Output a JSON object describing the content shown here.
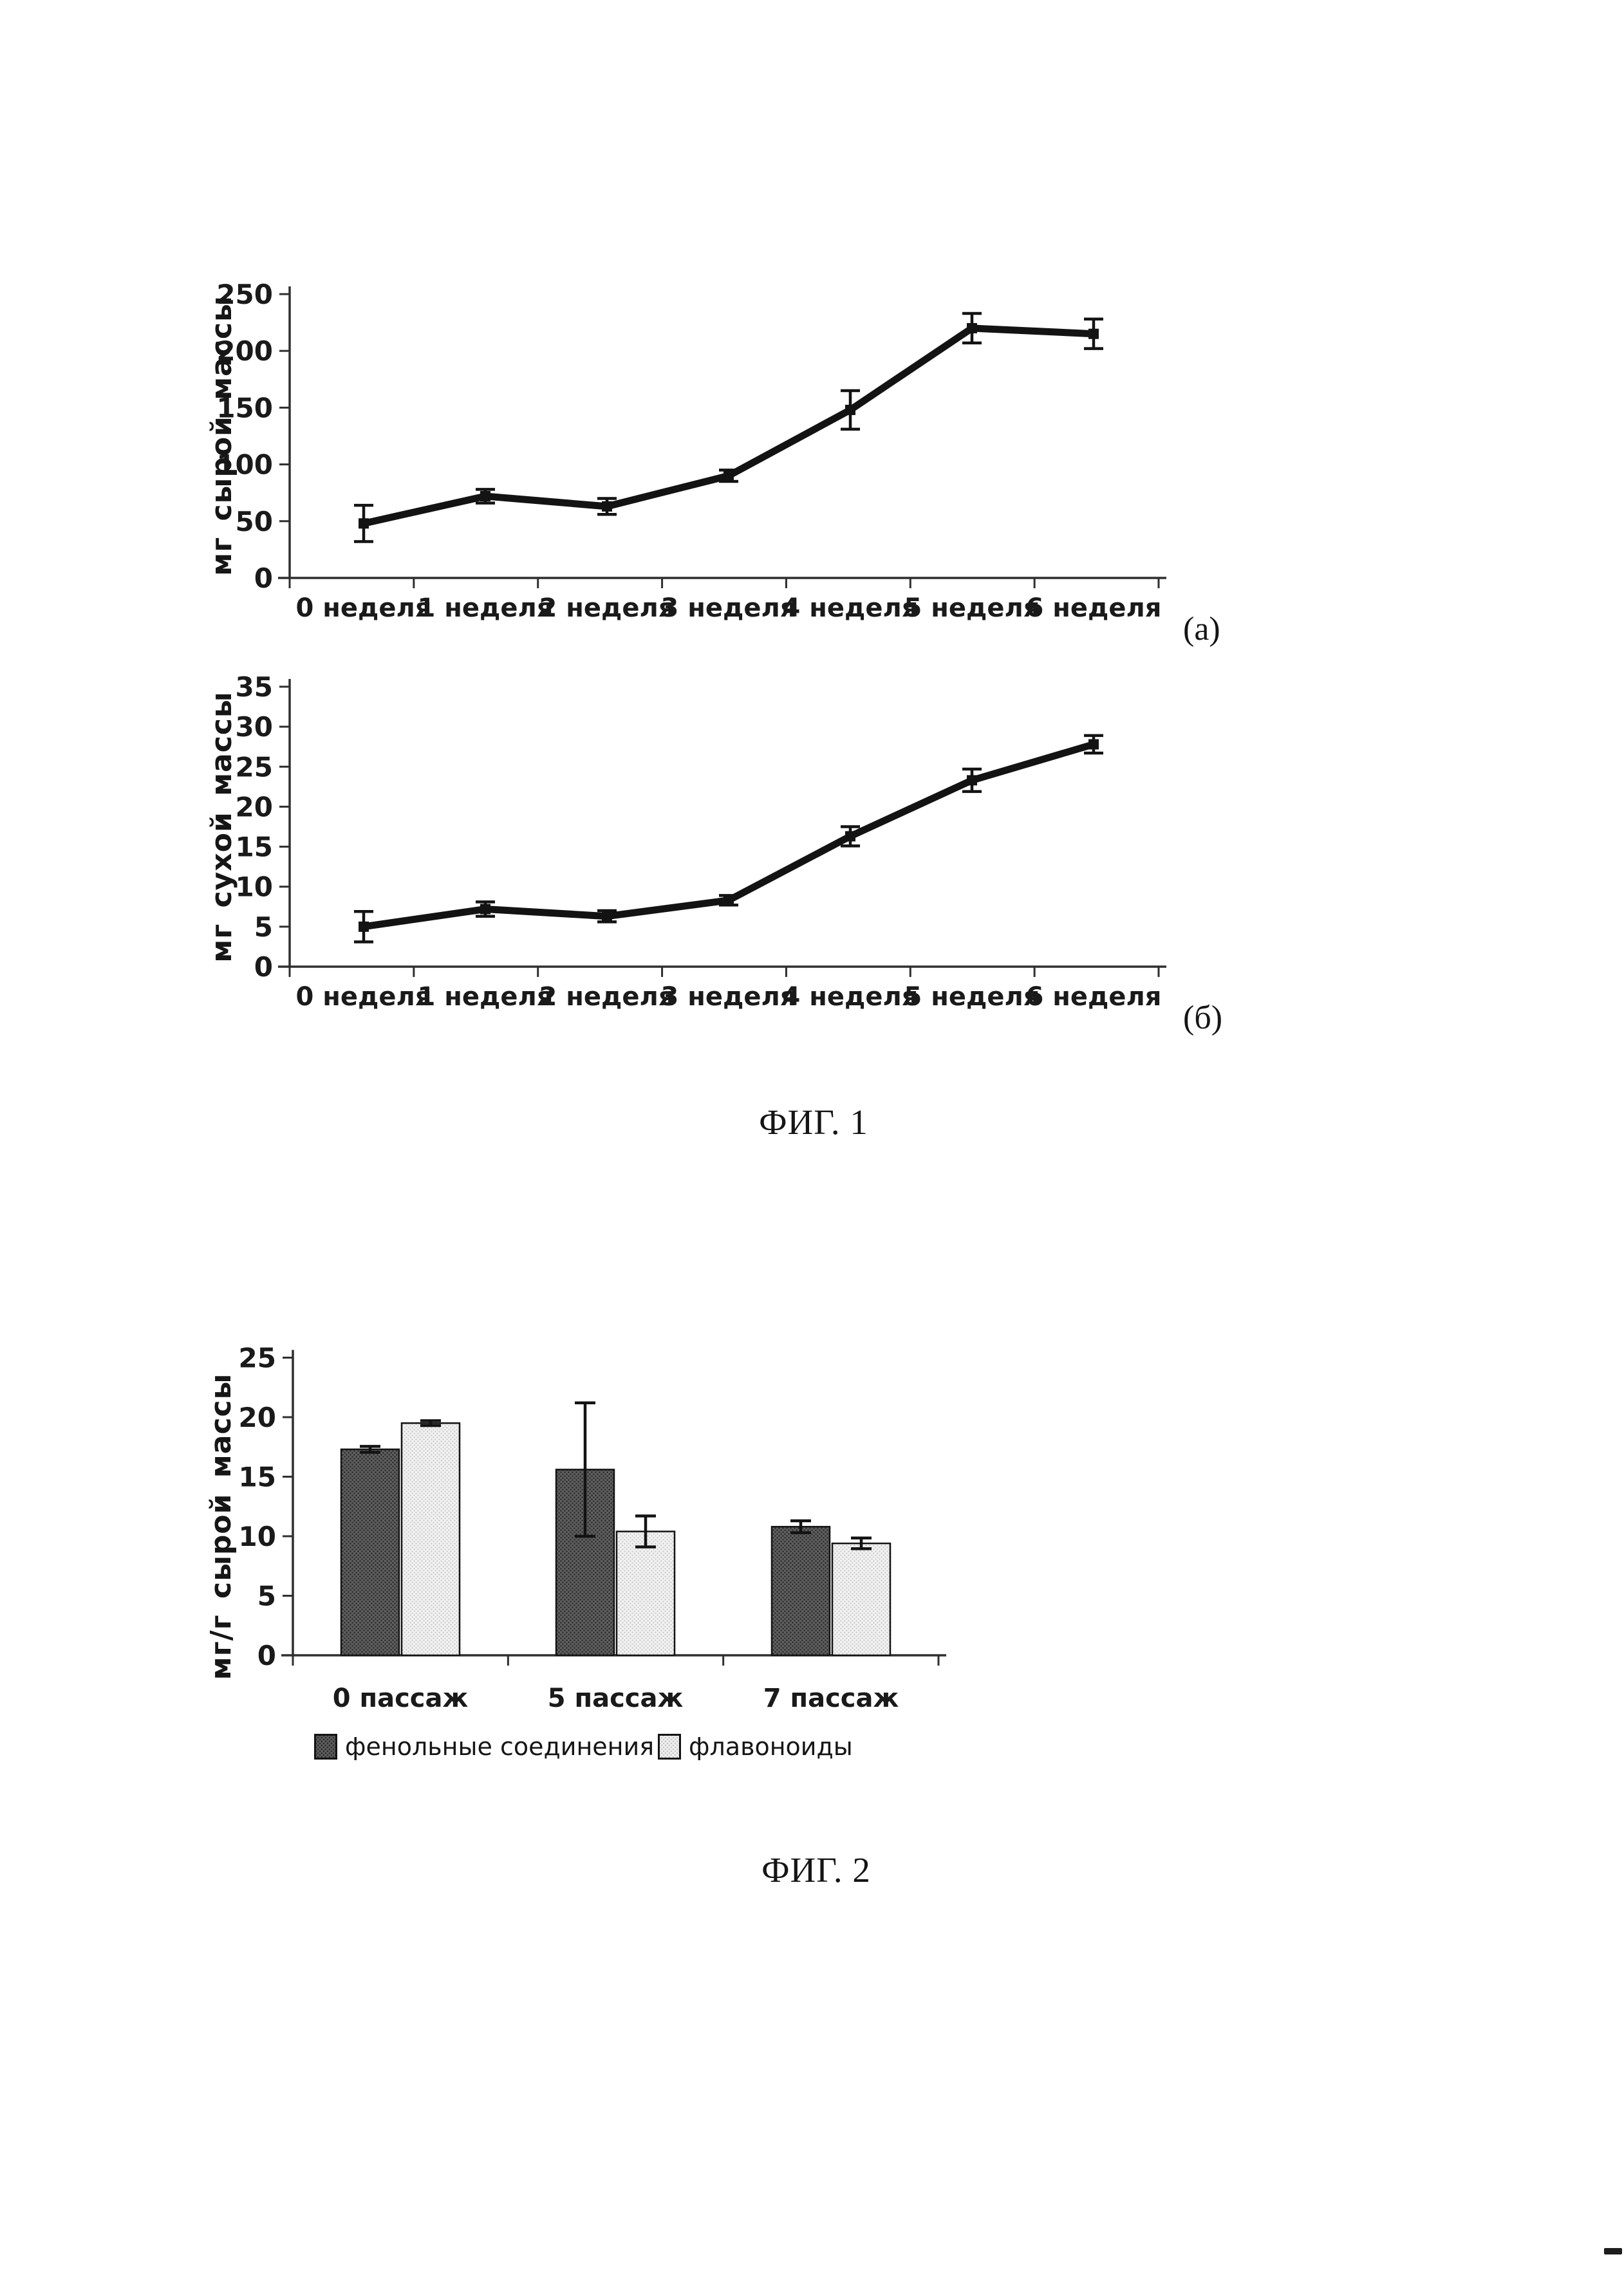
{
  "figure1": {
    "caption": "ФИГ. 1",
    "panel_a_tag": "(a)",
    "panel_b_tag": "(б)"
  },
  "figure2": {
    "caption": "ФИГ. 2"
  },
  "chart_data": [
    {
      "id": "fig1a",
      "type": "line",
      "panel": "(a)",
      "ylabel": "мг сырой массы",
      "categories": [
        "0 неделя",
        "1 неделя",
        "2 неделя",
        "3 неделя",
        "4 неделя",
        "5 неделя",
        "6 неделя"
      ],
      "values": [
        48,
        72,
        63,
        90,
        148,
        220,
        215
      ],
      "errors": [
        16,
        6,
        7,
        5,
        17,
        13,
        13
      ],
      "yticks": [
        0,
        50,
        100,
        150,
        200,
        250
      ],
      "ylim": [
        0,
        250
      ],
      "grid": false,
      "legend_position": "none",
      "line_color": "#131313"
    },
    {
      "id": "fig1b",
      "type": "line",
      "panel": "(б)",
      "ylabel": "мг сухой массы",
      "categories": [
        "0 неделя",
        "1 неделя",
        "2 неделя",
        "3 неделя",
        "4 неделя",
        "5 неделя",
        "6 неделя"
      ],
      "values": [
        5,
        7.2,
        6.3,
        8.3,
        16.3,
        23.3,
        27.8
      ],
      "errors": [
        1.9,
        0.9,
        0.7,
        0.6,
        1.2,
        1.4,
        1.1
      ],
      "yticks": [
        0,
        5,
        10,
        15,
        20,
        25,
        30,
        35
      ],
      "ylim": [
        0,
        35
      ],
      "grid": false,
      "legend_position": "none",
      "line_color": "#131313"
    },
    {
      "id": "fig2",
      "type": "bar",
      "ylabel": "мг/г сырой массы",
      "categories": [
        "0 пассаж",
        "5 пассаж",
        "7 пассаж"
      ],
      "series": [
        {
          "name": "фенольные соединения",
          "values": [
            17.3,
            15.6,
            10.8
          ],
          "errors": [
            0.25,
            5.6,
            0.5
          ],
          "fill": "#5e5e5e"
        },
        {
          "name": "флавоноиды",
          "values": [
            19.5,
            10.4,
            9.4
          ],
          "errors": [
            0.2,
            1.3,
            0.45
          ],
          "fill": "#f1f1f1"
        }
      ],
      "yticks": [
        0,
        5,
        10,
        15,
        20,
        25
      ],
      "ylim": [
        0,
        25
      ],
      "grid": false,
      "legend_position": "bottom"
    }
  ]
}
